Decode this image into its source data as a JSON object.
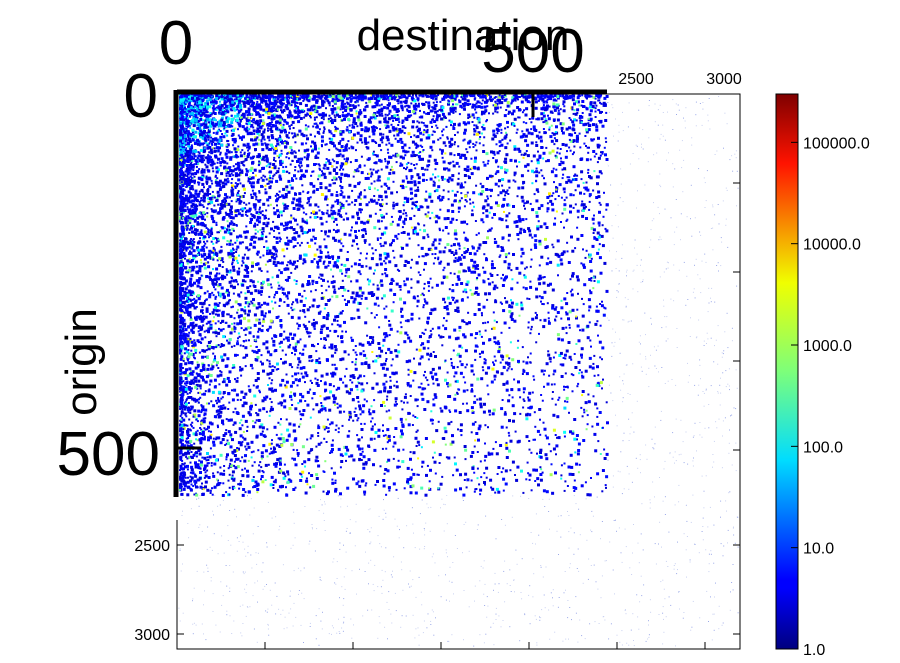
{
  "chart_data": {
    "type": "heatmap",
    "title": "",
    "xlabel": "destination",
    "ylabel": "origin",
    "colormap": "jet",
    "color_scale": "log",
    "background_matrix": {
      "x_range": [
        0,
        3000
      ],
      "y_range": [
        0,
        3000
      ],
      "x_ticks": [
        "2500",
        "3000"
      ],
      "y_ticks": [
        "2500",
        "3000"
      ]
    },
    "inset_matrix": {
      "x_range": [
        0,
        500
      ],
      "y_range": [
        0,
        500
      ],
      "x_ticks": [
        "0",
        "500"
      ],
      "y_ticks": [
        "0",
        "500"
      ]
    },
    "colorbar": {
      "range": [
        1,
        300000
      ],
      "ticks": [
        {
          "label": "1.0",
          "value": 1
        },
        {
          "label": "10.0",
          "value": 10
        },
        {
          "label": "100.0",
          "value": 100
        },
        {
          "label": "1000.0",
          "value": 1000
        },
        {
          "label": "10000.0",
          "value": 10000
        },
        {
          "label": "100000.0",
          "value": 100000
        }
      ]
    }
  }
}
